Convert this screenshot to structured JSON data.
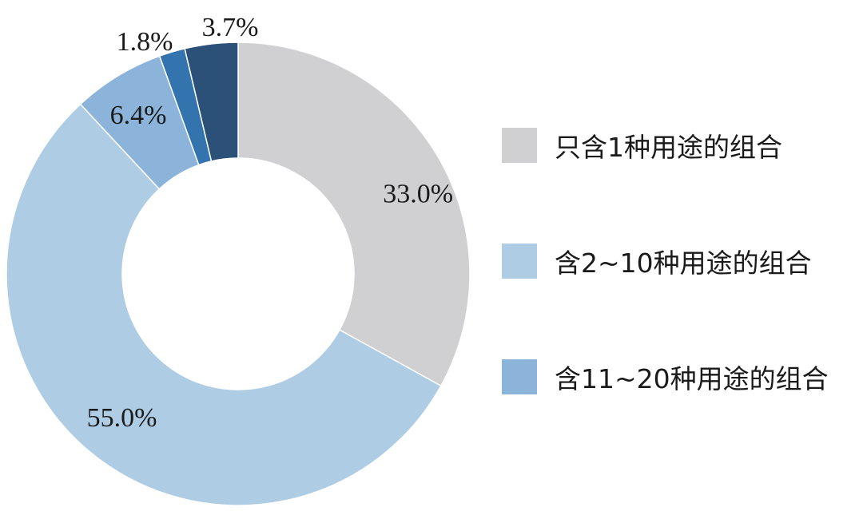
{
  "chart_data": {
    "type": "pie",
    "donut": true,
    "title": "",
    "categories": [
      "只含1种用途的组合",
      "含2~10种用途的组合",
      "含11~20种用途的组合",
      "",
      ""
    ],
    "values": [
      33.0,
      55.0,
      6.4,
      1.8,
      3.7
    ],
    "labels": [
      "33.0%",
      "55.0%",
      "6.4%",
      "1.8%",
      "3.7%"
    ],
    "colors": [
      "#d0d0d2",
      "#aecce4",
      "#8cb4da",
      "#3474ae",
      "#2c5178"
    ],
    "legend_position": "right",
    "legend": [
      {
        "label": "只含1种用途的组合",
        "color": "#d0d0d2"
      },
      {
        "label": "含2~10种用途的组合",
        "color": "#aecce4"
      },
      {
        "label": "含11~20种用途的组合",
        "color": "#8cb4da"
      }
    ]
  }
}
